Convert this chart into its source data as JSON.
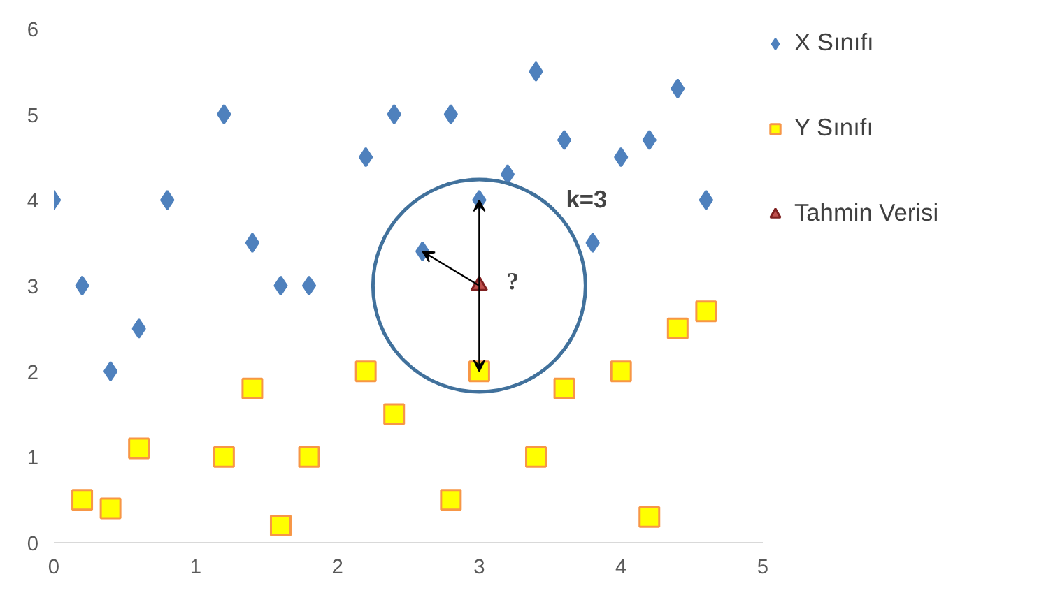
{
  "chart_data": {
    "type": "scatter",
    "xlim": [
      0,
      5
    ],
    "ylim": [
      0,
      6
    ],
    "xticks": [
      0,
      1,
      2,
      3,
      4,
      5
    ],
    "yticks": [
      0,
      1,
      2,
      3,
      4,
      5,
      6
    ],
    "grid": false,
    "legend": "right",
    "series": [
      {
        "name": "X Sınıfı",
        "color": "#4f81bd",
        "marker": "diamond",
        "x": [
          0,
          0.2,
          0.4,
          0.6,
          0.8,
          1.2,
          1.4,
          1.6,
          1.8,
          2.2,
          2.4,
          2.6,
          2.8,
          3,
          3.2,
          3.4,
          3.6,
          3.8,
          4,
          4.2,
          4.4,
          4.6
        ],
        "values": [
          4,
          3,
          2,
          2.5,
          4,
          5,
          3.5,
          3,
          3,
          4.5,
          5,
          3.4,
          5,
          4,
          4.3,
          5.5,
          4.7,
          3.5,
          4.5,
          4.7,
          5.3,
          4
        ]
      },
      {
        "name": "Y Sınıfı",
        "color": "#ffff00",
        "marker": "square",
        "x": [
          0.2,
          0.4,
          0.6,
          1.2,
          1.4,
          1.6,
          1.8,
          2.2,
          2.4,
          2.8,
          3,
          3.4,
          3.6,
          4,
          4.2,
          4.4,
          4.6
        ],
        "values": [
          0.5,
          0.4,
          1.1,
          1,
          1.8,
          0.2,
          1,
          2,
          1.5,
          0.5,
          2,
          1,
          1.8,
          2,
          0.3,
          2.5,
          2.7
        ]
      },
      {
        "name": "Tahmin Verisi",
        "color": "#c0504d",
        "marker": "triangle",
        "x": [
          3
        ],
        "values": [
          3
        ]
      }
    ],
    "annotations": [
      "k=3",
      {
        "text": "?",
        "x": 3,
        "y": 3
      }
    ]
  }
}
